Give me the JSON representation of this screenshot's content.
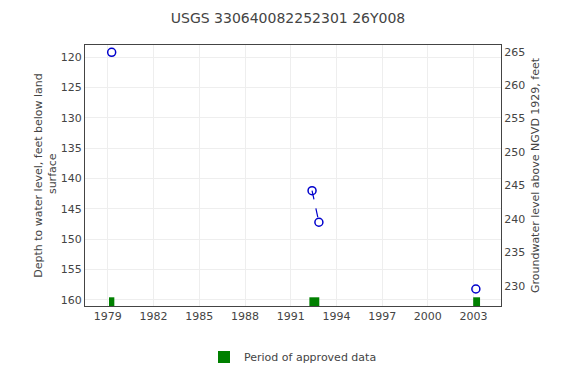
{
  "chart_data": {
    "type": "scatter",
    "title": "USGS 330640082252301 26Y008",
    "ylabel": "Depth to water level, feet below land\n surface",
    "y2label": "Groundwater level above NGVD 1929, feet",
    "xlim": [
      1977.5,
      2004.8
    ],
    "xticks": [
      1979,
      1982,
      1985,
      1988,
      1991,
      1994,
      1997,
      2000,
      2003
    ],
    "ylim": [
      161,
      118.0
    ],
    "yticks": [
      120,
      125,
      130,
      135,
      140,
      145,
      150,
      155,
      160
    ],
    "y2lim": [
      227.0,
      266.0
    ],
    "y2ticks": [
      265,
      260,
      255,
      250,
      245,
      240,
      235,
      230
    ],
    "grid": true,
    "legend": "bottom",
    "series": [
      {
        "type": "scatter",
        "marker": "circle-open",
        "color": "#0000cc",
        "x": [
          1979.25,
          1992.4,
          1992.85,
          2003.15
        ],
        "values": [
          119.2,
          142.0,
          147.2,
          158.2
        ]
      },
      {
        "type": "line",
        "line_style": "dashed",
        "color": "#0000cc",
        "x": [
          1992.4,
          1992.85
        ],
        "values": [
          142.0,
          147.2
        ]
      },
      {
        "type": "bar",
        "name": "Period of approved data",
        "color": "#008000",
        "x": [
          1979.25,
          1992.55,
          2003.2
        ],
        "width": [
          0.35,
          0.65,
          0.45
        ]
      }
    ]
  }
}
